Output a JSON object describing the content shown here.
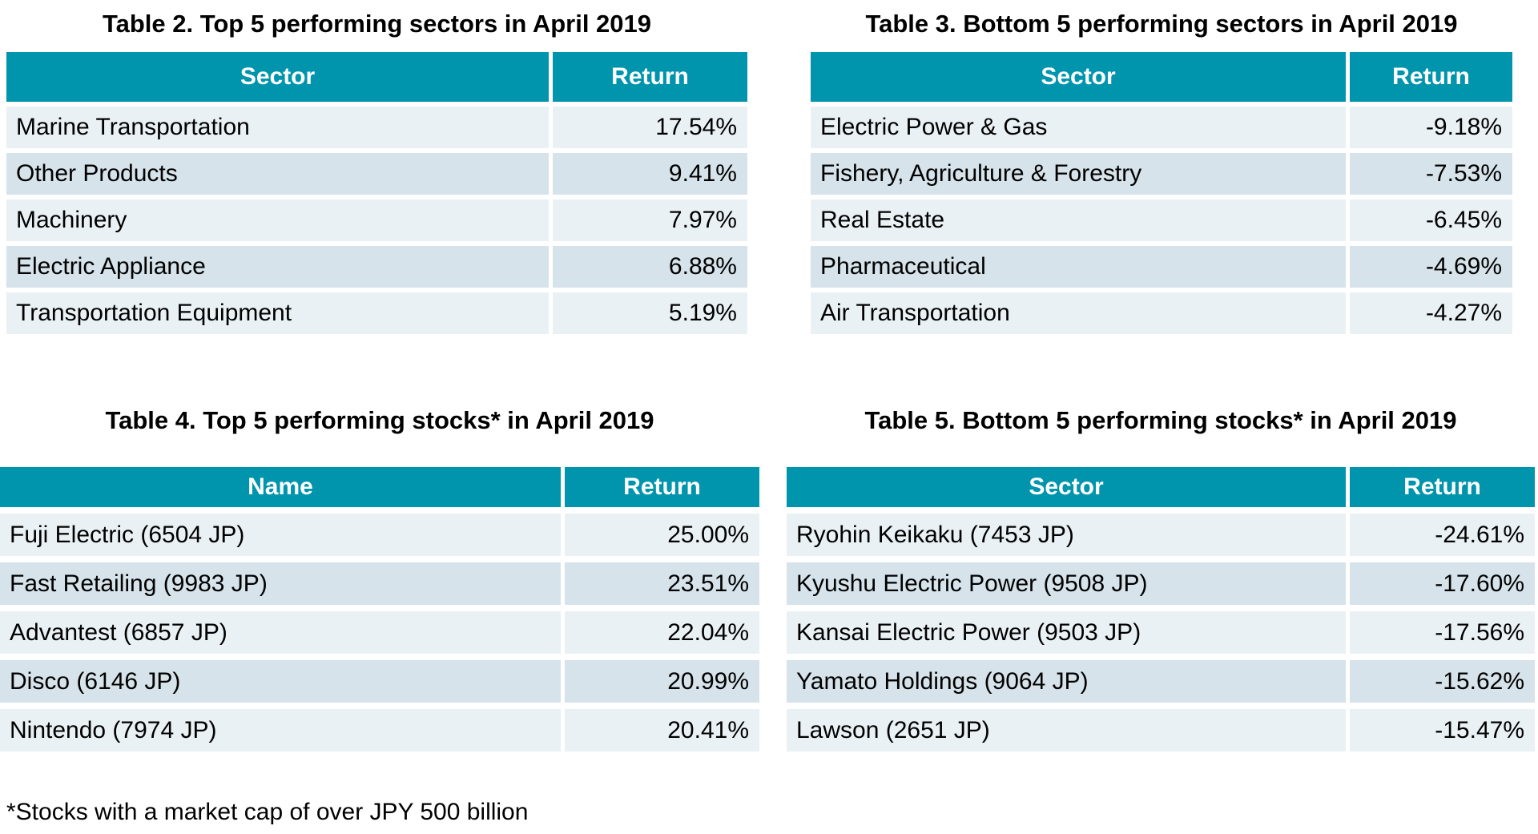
{
  "page": {
    "footnote": "*Stocks with a market cap of over JPY 500 billion"
  },
  "colors": {
    "header_bg": "#0095AD",
    "header_text": "#ffffff",
    "row_odd_bg": "#D6E3EA",
    "row_even_bg": "#EAF1F5",
    "body_text": "#000000",
    "page_bg": "#ffffff"
  },
  "tables": [
    {
      "id": "table-2",
      "title": "Table 2. Top 5 performing sectors in April 2019",
      "columns": [
        "Sector",
        "Return"
      ],
      "rows": [
        [
          "Marine Transportation",
          "17.54%"
        ],
        [
          "Other Products",
          "9.41%"
        ],
        [
          "Machinery",
          "7.97%"
        ],
        [
          "Electric Appliance",
          "6.88%"
        ],
        [
          "Transportation Equipment",
          "5.19%"
        ]
      ]
    },
    {
      "id": "table-3",
      "title": "Table 3. Bottom 5 performing sectors in April 2019",
      "columns": [
        "Sector",
        "Return"
      ],
      "rows": [
        [
          "Electric Power & Gas",
          "-9.18%"
        ],
        [
          "Fishery, Agriculture & Forestry",
          "-7.53%"
        ],
        [
          "Real Estate",
          "-6.45%"
        ],
        [
          "Pharmaceutical",
          "-4.69%"
        ],
        [
          "Air Transportation",
          "-4.27%"
        ]
      ]
    },
    {
      "id": "table-4",
      "title": "Table 4. Top 5 performing stocks* in April 2019",
      "columns": [
        "Name",
        "Return"
      ],
      "rows": [
        [
          "Fuji Electric (6504 JP)",
          "25.00%"
        ],
        [
          "Fast Retailing (9983 JP)",
          "23.51%"
        ],
        [
          "Advantest (6857 JP)",
          "22.04%"
        ],
        [
          "Disco (6146 JP)",
          "20.99%"
        ],
        [
          "Nintendo (7974 JP)",
          "20.41%"
        ]
      ]
    },
    {
      "id": "table-5",
      "title": "Table 5. Bottom 5 performing stocks* in April 2019",
      "columns": [
        "Sector",
        "Return"
      ],
      "rows": [
        [
          "Ryohin Keikaku (7453 JP)",
          "-24.61%"
        ],
        [
          "Kyushu Electric Power (9508 JP)",
          "-17.60%"
        ],
        [
          "Kansai Electric Power (9503 JP)",
          "-17.56%"
        ],
        [
          "Yamato Holdings (9064 JP)",
          "-15.62%"
        ],
        [
          "Lawson (2651 JP)",
          "-15.47%"
        ]
      ]
    }
  ]
}
